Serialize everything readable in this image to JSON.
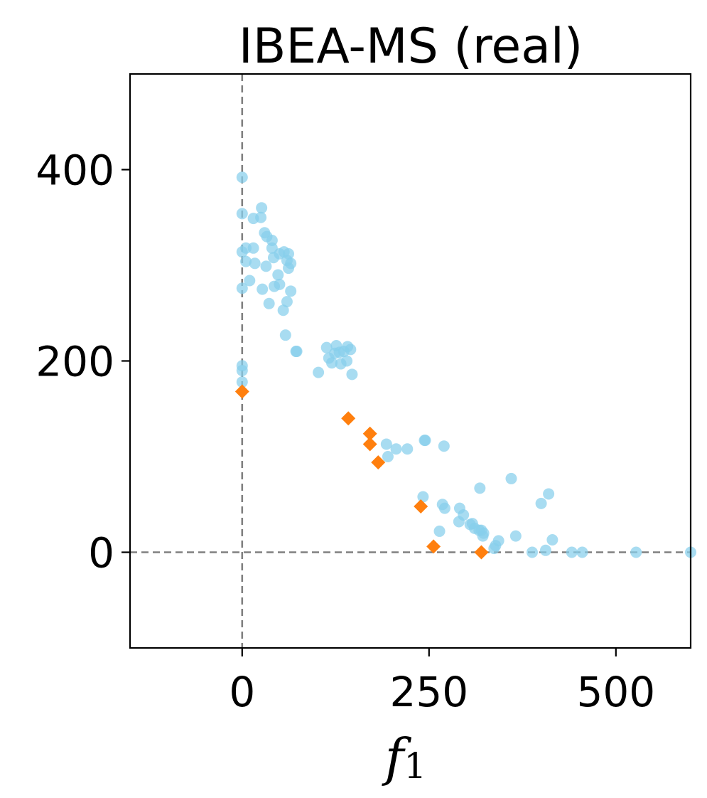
{
  "chart_data": {
    "type": "scatter",
    "title": "IBEA-MS (real)",
    "xlabel_main": "f",
    "xlabel_sub": "1",
    "ylabel": "",
    "xlim": [
      -150,
      600
    ],
    "ylim": [
      -100,
      500
    ],
    "xticks": [
      0,
      250,
      500
    ],
    "yticks": [
      0,
      200,
      400
    ],
    "xtick_labels": [
      "0",
      "250",
      "500"
    ],
    "ytick_labels": [
      "0",
      "200",
      "400"
    ],
    "reference_lines": {
      "x": 0,
      "y": 0,
      "style": "dashed",
      "color": "#808080"
    },
    "grid": false,
    "series": [
      {
        "marker": "circle",
        "color": "#87ceeb",
        "points": [
          [
            0,
            392
          ],
          [
            0,
            354
          ],
          [
            0,
            314
          ],
          [
            5,
            318
          ],
          [
            0,
            276
          ],
          [
            5,
            304
          ],
          [
            10,
            284
          ],
          [
            15,
            318
          ],
          [
            15,
            349
          ],
          [
            17,
            302
          ],
          [
            25,
            350
          ],
          [
            26,
            360
          ],
          [
            27,
            275
          ],
          [
            30,
            334
          ],
          [
            32,
            299
          ],
          [
            33,
            330
          ],
          [
            36,
            260
          ],
          [
            40,
            326
          ],
          [
            40,
            318
          ],
          [
            42,
            308
          ],
          [
            43,
            278
          ],
          [
            48,
            290
          ],
          [
            50,
            312
          ],
          [
            50,
            280
          ],
          [
            55,
            253
          ],
          [
            56,
            314
          ],
          [
            58,
            227
          ],
          [
            60,
            262
          ],
          [
            60,
            305
          ],
          [
            62,
            312
          ],
          [
            62,
            297
          ],
          [
            65,
            302
          ],
          [
            65,
            273
          ],
          [
            72,
            210
          ],
          [
            73,
            210
          ],
          [
            0,
            195
          ],
          [
            0,
            190
          ],
          [
            0,
            178
          ],
          [
            102,
            188
          ],
          [
            113,
            214
          ],
          [
            116,
            203
          ],
          [
            120,
            198
          ],
          [
            124,
            208
          ],
          [
            126,
            216
          ],
          [
            130,
            209
          ],
          [
            132,
            197
          ],
          [
            136,
            210
          ],
          [
            140,
            200
          ],
          [
            141,
            215
          ],
          [
            145,
            212
          ],
          [
            147,
            186
          ],
          [
            193,
            113
          ],
          [
            195,
            100
          ],
          [
            206,
            108
          ],
          [
            221,
            108
          ],
          [
            244,
            117
          ],
          [
            245,
            117
          ],
          [
            270,
            111
          ],
          [
            242,
            58
          ],
          [
            264,
            22
          ],
          [
            268,
            50
          ],
          [
            271,
            46
          ],
          [
            290,
            32
          ],
          [
            291,
            46
          ],
          [
            296,
            39
          ],
          [
            305,
            29
          ],
          [
            308,
            30
          ],
          [
            311,
            25
          ],
          [
            317,
            23
          ],
          [
            318,
            67
          ],
          [
            320,
            23
          ],
          [
            322,
            17
          ],
          [
            323,
            20
          ],
          [
            337,
            4
          ],
          [
            339,
            7
          ],
          [
            343,
            12
          ],
          [
            360,
            77
          ],
          [
            366,
            17
          ],
          [
            388,
            0
          ],
          [
            400,
            51
          ],
          [
            406,
            2
          ],
          [
            410,
            61
          ],
          [
            415,
            13
          ],
          [
            441,
            0
          ],
          [
            455,
            0
          ],
          [
            527,
            0
          ],
          [
            600,
            0
          ]
        ]
      },
      {
        "marker": "diamond",
        "color": "#ff7f0e",
        "points": [
          [
            0,
            168
          ],
          [
            142,
            140
          ],
          [
            171,
            124
          ],
          [
            171,
            113
          ],
          [
            182,
            94
          ],
          [
            239,
            48
          ],
          [
            256,
            6
          ],
          [
            320,
            0
          ]
        ]
      }
    ]
  }
}
